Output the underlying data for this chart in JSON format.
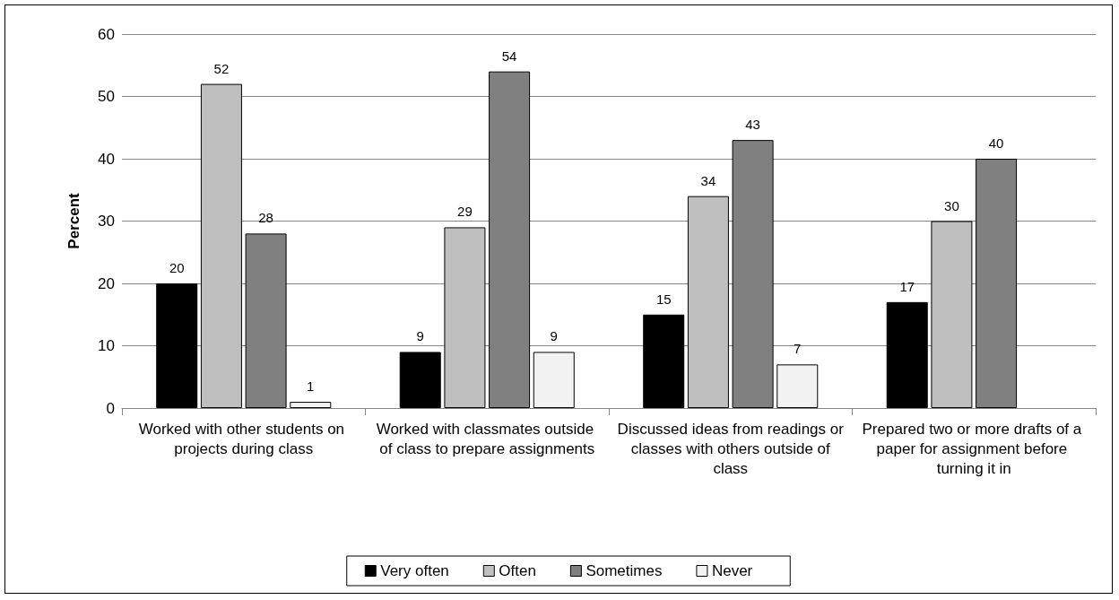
{
  "chart_data": {
    "type": "bar",
    "ylabel": "Percent",
    "categories": [
      "Worked with other students on projects during class",
      "Worked with classmates outside of class to prepare assignments",
      "Discussed ideas from readings or classes with others outside of class",
      "Prepared two or more drafts of a paper for assignment before turning it in"
    ],
    "series": [
      {
        "name": "Very often",
        "color": "#000000",
        "values": [
          20,
          9,
          15,
          17
        ]
      },
      {
        "name": "Often",
        "color": "#bfbfbf",
        "values": [
          52,
          29,
          34,
          30
        ]
      },
      {
        "name": "Sometimes",
        "color": "#808080",
        "values": [
          28,
          54,
          43,
          40
        ]
      },
      {
        "name": "Never",
        "color": "#f2f2f2",
        "values": [
          1,
          9,
          7,
          null
        ]
      }
    ],
    "ylim": [
      0,
      60
    ],
    "yticks": [
      0,
      10,
      20,
      30,
      40,
      50,
      60
    ],
    "grid": "y",
    "data_labels": true,
    "legend": "bottom"
  }
}
